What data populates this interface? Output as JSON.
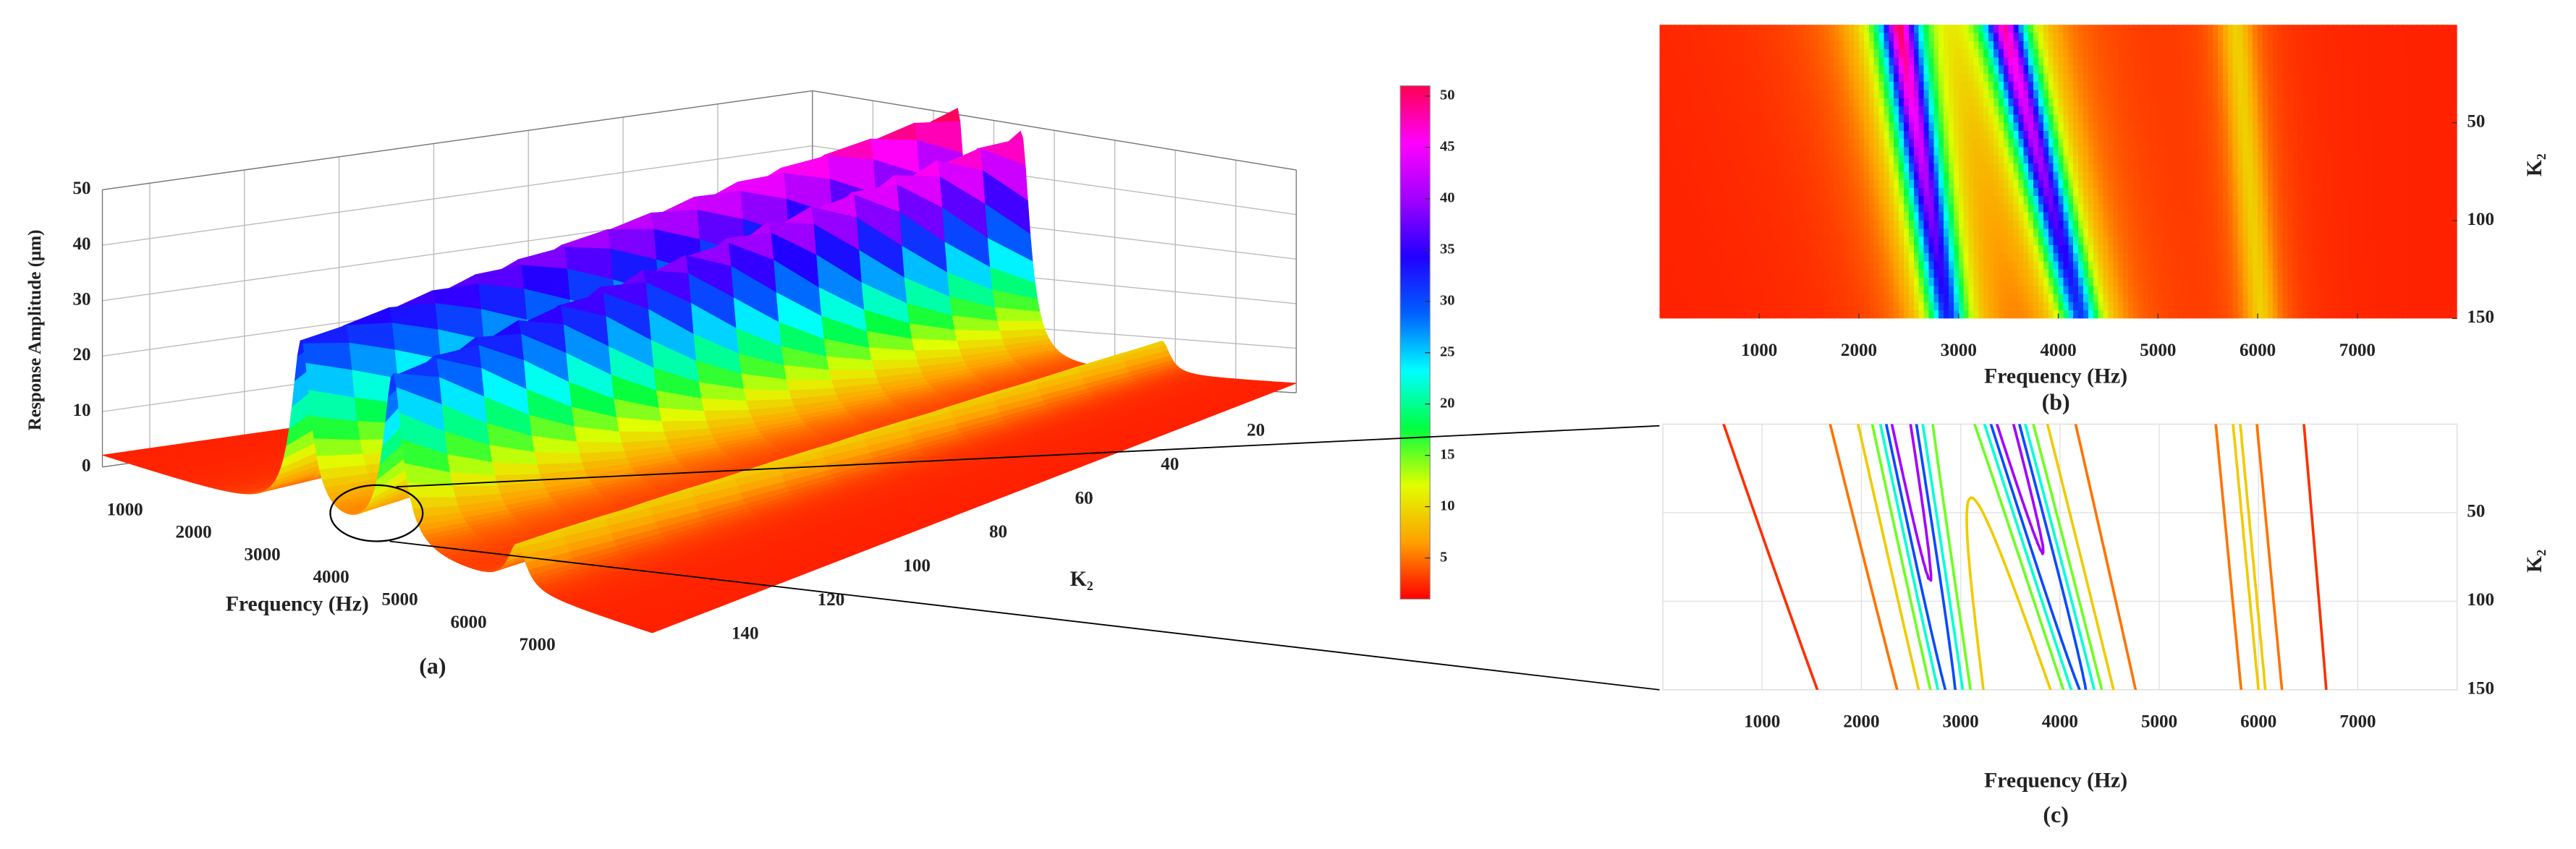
{
  "chart_data": [
    {
      "type": "surface3d",
      "zlabel": "Response Amplitude (μm)",
      "xlabel": "Frequency (Hz)",
      "ylabel": "K₂",
      "caption": "(a)",
      "xlim": [
        0,
        8000
      ],
      "xticks": [
        1000,
        2000,
        3000,
        4000,
        5000,
        6000,
        7000
      ],
      "ylim": [
        0,
        150
      ],
      "yticks": [
        20,
        40,
        60,
        80,
        100,
        120,
        140
      ],
      "zlim": [
        0,
        50
      ],
      "zticks": [
        0,
        10,
        20,
        30,
        40,
        50
      ],
      "clim": [
        1,
        51
      ],
      "cticks": [
        5,
        10,
        15,
        20,
        25,
        30,
        35,
        40,
        45,
        50
      ],
      "colormap": [
        "#ff0000",
        "#ffa000",
        "#e0ff00",
        "#00ff40",
        "#00ffff",
        "#0060ff",
        "#2000ff",
        "#a000ff",
        "#ff00ff",
        "#ff0050"
      ]
    },
    {
      "type": "heatmap",
      "xlabel": "Frequency (Hz)",
      "ylabel": "K₂",
      "caption": "(b)",
      "xlim": [
        0,
        8000
      ],
      "xticks": [
        1000,
        2000,
        3000,
        4000,
        5000,
        6000,
        7000
      ],
      "ylim": [
        0,
        150
      ],
      "yticks": [
        50,
        100,
        150
      ],
      "y_inverted": true
    },
    {
      "type": "contour",
      "xlabel": "Frequency (Hz)",
      "ylabel": "K₂",
      "caption": "(c)",
      "xlim": [
        0,
        8000
      ],
      "xticks": [
        1000,
        2000,
        3000,
        4000,
        5000,
        6000,
        7000
      ],
      "ylim": [
        0,
        150
      ],
      "yticks": [
        50,
        100,
        150
      ],
      "y_inverted": true,
      "grid": true
    }
  ]
}
